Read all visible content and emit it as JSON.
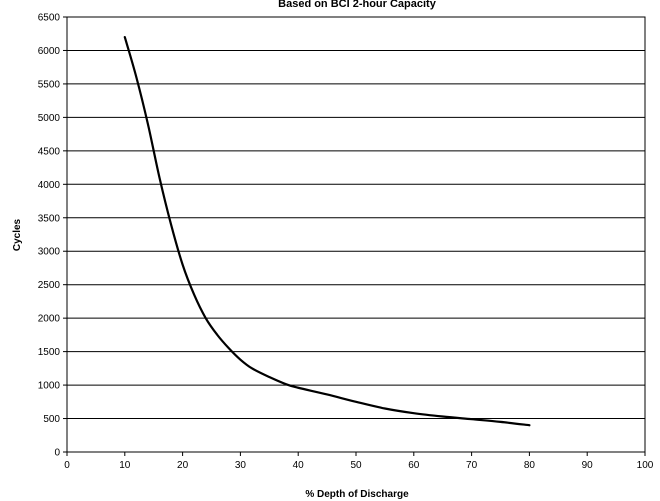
{
  "chart_data": {
    "type": "line",
    "title": "Based on BCI 2-hour Capacity",
    "xlabel": "% Depth of Discharge",
    "ylabel": "Cycles",
    "xlim": [
      0,
      100
    ],
    "ylim": [
      0,
      6500
    ],
    "xticks": [
      0,
      10,
      20,
      30,
      40,
      50,
      60,
      70,
      80,
      90,
      100
    ],
    "yticks": [
      0,
      500,
      1000,
      1500,
      2000,
      2500,
      3000,
      3500,
      4000,
      4500,
      5000,
      5500,
      6000,
      6500
    ],
    "grid": "horizontal",
    "legend": "none",
    "line_color": "#000000",
    "series": [
      {
        "x": [
          10,
          12,
          14,
          16,
          18,
          20,
          22,
          24,
          26,
          28,
          30,
          32,
          35,
          38,
          40,
          45,
          50,
          55,
          60,
          65,
          70,
          75,
          80
        ],
        "y": [
          6200,
          5600,
          4900,
          4100,
          3400,
          2800,
          2350,
          2000,
          1750,
          1550,
          1380,
          1250,
          1120,
          1010,
          960,
          860,
          750,
          650,
          580,
          530,
          490,
          450,
          400
        ]
      }
    ]
  }
}
